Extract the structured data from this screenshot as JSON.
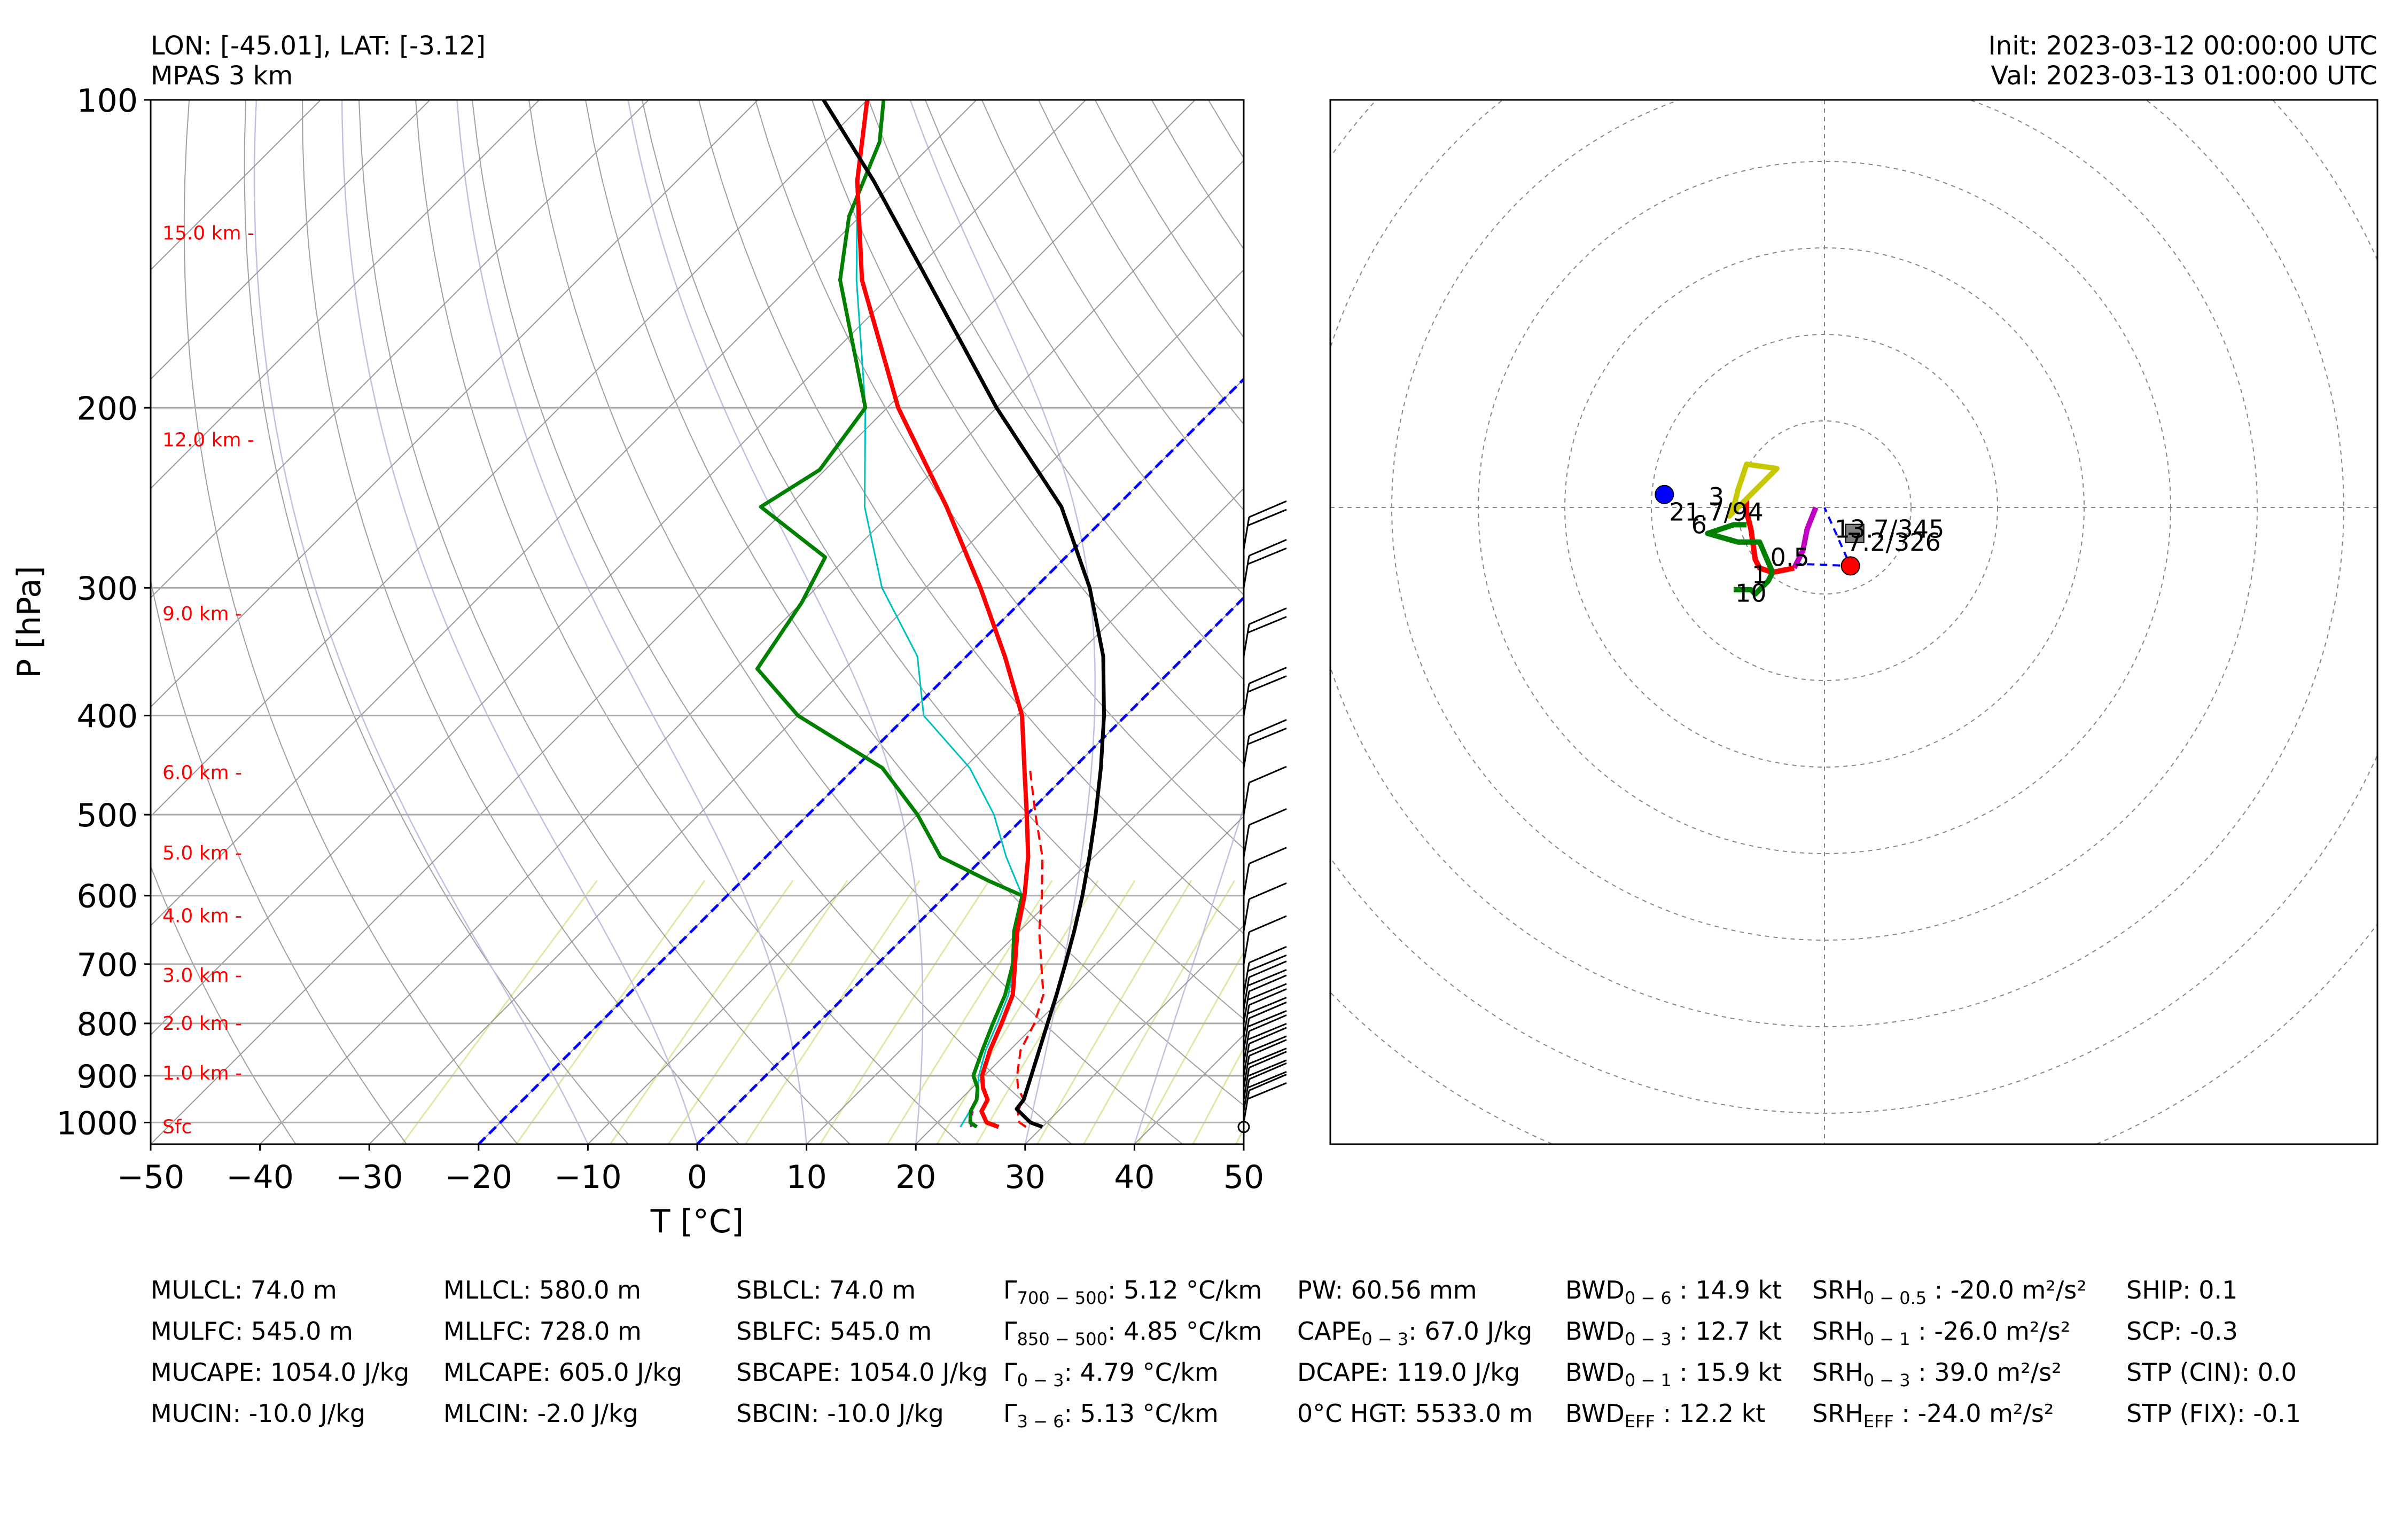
{
  "header": {
    "location": "LON: [-45.01], LAT: [-3.12]",
    "model": "MPAS 3 km",
    "init": "Init: 2023-03-12 00:00:00 UTC",
    "valid": "Val: 2023-03-13 01:00:00 UTC"
  },
  "colors": {
    "temperature": "#ff0000",
    "dewpoint": "#008000",
    "virtual_temperature": "#ff0000",
    "parcel_profile": "#000000",
    "wetbulb": "#00bfbf",
    "isotherm_zero": "#0000ff",
    "dry_adiabat": "#808080",
    "moist_adiabat": "#c0c0e0",
    "mixing_ratio": "#e0e8a8",
    "height_label": "#ff0000"
  },
  "chart_data": [
    {
      "type": "line",
      "subtype": "skew-T log-P",
      "xlabel": "T [°C]",
      "ylabel": "P [hPa]",
      "xlim": [
        -50,
        50
      ],
      "ylim": [
        1050,
        100
      ],
      "x_ticks": [
        "−50",
        "−40",
        "−30",
        "−20",
        "−10",
        "0",
        "10",
        "20",
        "30",
        "40",
        "50"
      ],
      "y_ticks": [
        "100",
        "200",
        "300",
        "400",
        "500",
        "600",
        "700",
        "800",
        "900",
        "1000"
      ],
      "y_tick_values": [
        100,
        200,
        300,
        400,
        500,
        600,
        700,
        800,
        900,
        1000
      ],
      "height_labels": [
        {
          "label": "15.0 km -",
          "p": 135
        },
        {
          "label": "12.0 km -",
          "p": 215
        },
        {
          "label": "9.0 km -",
          "p": 318
        },
        {
          "label": "6.0 km -",
          "p": 455
        },
        {
          "label": "5.0 km -",
          "p": 545
        },
        {
          "label": "4.0 km -",
          "p": 628
        },
        {
          "label": "3.0 km -",
          "p": 718
        },
        {
          "label": "2.0 km -",
          "p": 800
        },
        {
          "label": "1.0 km -",
          "p": 895
        },
        {
          "label": "Sfc",
          "p": 1010
        }
      ],
      "series": [
        {
          "key": "temperature",
          "points": [
            [
              1010,
              26
            ],
            [
              1000,
              24.5
            ],
            [
              975,
              23
            ],
            [
              950,
              22.5
            ],
            [
              925,
              21
            ],
            [
              900,
              19.8
            ],
            [
              850,
              18.2
            ],
            [
              800,
              16.8
            ],
            [
              750,
              15.2
            ],
            [
              700,
              12.6
            ],
            [
              650,
              9.8
            ],
            [
              600,
              7.2
            ],
            [
              550,
              4.0
            ],
            [
              500,
              0.0
            ],
            [
              450,
              -4.5
            ],
            [
              400,
              -9.5
            ],
            [
              350,
              -16.5
            ],
            [
              300,
              -25.0
            ],
            [
              250,
              -35.5
            ],
            [
              200,
              -49.0
            ],
            [
              150,
              -64.0
            ],
            [
              120,
              -73.5
            ],
            [
              100,
              -80.0
            ]
          ]
        },
        {
          "key": "virtual_temperature",
          "points": [
            [
              1010,
              28.5
            ],
            [
              1000,
              27.5
            ],
            [
              975,
              26.3
            ],
            [
              950,
              25.8
            ],
            [
              925,
              24.2
            ],
            [
              900,
              23.0
            ],
            [
              850,
              21.0
            ],
            [
              800,
              19.8
            ],
            [
              750,
              18.0
            ],
            [
              700,
              15.0
            ],
            [
              650,
              11.8
            ],
            [
              600,
              8.8
            ],
            [
              550,
              5.3
            ],
            [
              500,
              0.8
            ],
            [
              450,
              -4.0
            ]
          ]
        },
        {
          "key": "dewpoint",
          "points": [
            [
              1010,
              24
            ],
            [
              1000,
              23
            ],
            [
              975,
              22
            ],
            [
              950,
              21.5
            ],
            [
              925,
              20.5
            ],
            [
              900,
              19
            ],
            [
              850,
              17.5
            ],
            [
              800,
              16
            ],
            [
              750,
              14.5
            ],
            [
              700,
              12.4
            ],
            [
              650,
              9.5
            ],
            [
              600,
              7.0
            ],
            [
              580,
              2.5
            ],
            [
              550,
              -4.0
            ],
            [
              500,
              -10.0
            ],
            [
              450,
              -17.5
            ],
            [
              400,
              -30.0
            ],
            [
              360,
              -38.0
            ],
            [
              310,
              -40.0
            ],
            [
              280,
              -42.0
            ],
            [
              250,
              -52.5
            ],
            [
              230,
              -50.5
            ],
            [
              200,
              -52.0
            ],
            [
              150,
              -66.0
            ],
            [
              130,
              -71.0
            ],
            [
              110,
              -75.0
            ],
            [
              100,
              -78.5
            ]
          ]
        },
        {
          "key": "wetbulb",
          "points": [
            [
              1010,
              22.5
            ],
            [
              950,
              21.5
            ],
            [
              900,
              19.5
            ],
            [
              850,
              17.8
            ],
            [
              800,
              16.4
            ],
            [
              750,
              14.8
            ],
            [
              700,
              12.5
            ],
            [
              650,
              9.6
            ],
            [
              600,
              7.0
            ],
            [
              550,
              2.0
            ],
            [
              500,
              -3.0
            ],
            [
              450,
              -9.5
            ],
            [
              400,
              -18.5
            ],
            [
              350,
              -24.5
            ],
            [
              300,
              -34.0
            ],
            [
              250,
              -43.0
            ],
            [
              200,
              -52.0
            ],
            [
              150,
              -64.5
            ],
            [
              120,
              -73.5
            ],
            [
              100,
              -80.0
            ]
          ]
        },
        {
          "key": "dewpoint_low",
          "points": [
            [
              1010,
              23.5
            ],
            [
              1000,
              23
            ],
            [
              975,
              22.2
            ]
          ]
        },
        {
          "key": "parcel_profile",
          "points": [
            [
              1010,
              30
            ],
            [
              1000,
              28.5
            ],
            [
              970,
              26.0
            ],
            [
              950,
              25.8
            ],
            [
              900,
              24.3
            ],
            [
              850,
              22.7
            ],
            [
              800,
              21.0
            ],
            [
              750,
              19.2
            ],
            [
              700,
              17.2
            ],
            [
              650,
              15.0
            ],
            [
              600,
              12.5
            ],
            [
              550,
              9.6
            ],
            [
              500,
              6.3
            ],
            [
              450,
              2.5
            ],
            [
              400,
              -2.0
            ],
            [
              350,
              -7.5
            ],
            [
              300,
              -15.0
            ],
            [
              250,
              -25.0
            ],
            [
              200,
              -40.0
            ],
            [
              150,
              -58.0
            ],
            [
              120,
              -72.0
            ],
            [
              100,
              -84.0
            ]
          ]
        }
      ]
    },
    {
      "type": "line",
      "subtype": "hodograph",
      "ring_labels": [],
      "segments": [
        {
          "color": "#c000c0",
          "points": [
            [
              -2,
              0
            ],
            [
              -4,
              -5
            ],
            [
              -5,
              -10
            ],
            [
              -7,
              -14
            ]
          ]
        },
        {
          "color": "#ff0000",
          "points": [
            [
              -7,
              -14
            ],
            [
              -12,
              -15
            ],
            [
              -15,
              -14
            ],
            [
              -16,
              -12
            ],
            [
              -17,
              -5
            ],
            [
              -18,
              -1
            ],
            [
              -18,
              2
            ]
          ]
        },
        {
          "color": "#008000",
          "points": [
            [
              -12,
              -15
            ],
            [
              -13,
              -17
            ],
            [
              -16,
              -20
            ],
            [
              -17,
              -19
            ],
            [
              -21,
              -19
            ]
          ]
        },
        {
          "color": "#008000",
          "points": [
            [
              -18,
              -4
            ],
            [
              -21,
              -4
            ],
            [
              -27,
              -6
            ],
            [
              -20,
              -8
            ],
            [
              -15,
              -8
            ],
            [
              -12,
              -15
            ]
          ]
        },
        {
          "color": "#c8c800",
          "points": [
            [
              -18,
              2
            ],
            [
              -22,
              -2
            ],
            [
              -21,
              0
            ],
            [
              -20,
              4
            ],
            [
              -18,
              10
            ],
            [
              -11,
              9
            ],
            [
              -18,
              2
            ]
          ]
        }
      ],
      "markers": [
        {
          "label": "0.5",
          "x": -8,
          "y": -13.5
        },
        {
          "label": "1",
          "x": -15,
          "y": -17.5
        },
        {
          "label": "3",
          "x": -25,
          "y": 0.5
        },
        {
          "label": "6",
          "x": -29,
          "y": -6
        },
        {
          "label": "10",
          "x": -17,
          "y": -21.8
        }
      ],
      "annotations": [
        {
          "label": "21.7/94",
          "x": -25,
          "y": -3
        },
        {
          "label": "13.7/345",
          "x": 15,
          "y": -7
        },
        {
          "label": "7.2/326",
          "x": 16,
          "y": -10
        }
      ],
      "storm_motion_left": {
        "x": -37,
        "y": 3,
        "color": "#0000ff"
      },
      "storm_motion_right": {
        "x": 6,
        "y": -13.5,
        "color": "#ff0000"
      },
      "mean_wind": {
        "x": 7,
        "y": -6,
        "color": "#808080"
      }
    }
  ],
  "indices": {
    "col1": [
      "MULCL: 74.0 m",
      "MULFC: 545.0 m",
      "MUCAPE: 1054.0 J/kg",
      "MUCIN: -10.0 J/kg"
    ],
    "col2": [
      "MLLCL: 580.0 m",
      "MLLFC: 728.0 m",
      "MLCAPE: 605.0 J/kg",
      "MLCIN: -2.0 J/kg"
    ],
    "col3": [
      "SBLCL: 74.0 m",
      "SBLFC: 545.0 m",
      "SBCAPE: 1054.0 J/kg",
      "SBCIN: -10.0 J/kg"
    ],
    "col4": [
      {
        "pre": "Γ",
        "sub": "700 − 500",
        "post": ": 5.12 °C/km"
      },
      {
        "pre": "Γ",
        "sub": "850 − 500",
        "post": ": 4.85 °C/km"
      },
      {
        "pre": "Γ",
        "sub": "0 − 3",
        "post": ": 4.79 °C/km"
      },
      {
        "pre": "Γ",
        "sub": "3 − 6",
        "post": ": 5.13 °C/km"
      }
    ],
    "col5": [
      {
        "pre": "PW: 60.56 mm",
        "sub": "",
        "post": ""
      },
      {
        "pre": "CAPE",
        "sub": "0 − 3",
        "post": ": 67.0 J/kg"
      },
      {
        "pre": "DCAPE: 119.0 J/kg",
        "sub": "",
        "post": ""
      },
      {
        "pre": "0°C HGT: 5533.0 m",
        "sub": "",
        "post": ""
      }
    ],
    "col6": [
      {
        "pre": "BWD",
        "sub": "0 − 6",
        "post": " : 14.9 kt"
      },
      {
        "pre": "BWD",
        "sub": "0 − 3",
        "post": " : 12.7 kt"
      },
      {
        "pre": "BWD",
        "sub": "0 − 1",
        "post": " : 15.9 kt"
      },
      {
        "pre": "BWD",
        "sub": "EFF",
        "post": " : 12.2 kt"
      }
    ],
    "col7": [
      {
        "pre": "SRH",
        "sub": "0 − 0.5",
        "post": " : -20.0 m²/s²"
      },
      {
        "pre": "SRH",
        "sub": "0 − 1",
        "post": " : -26.0 m²/s²"
      },
      {
        "pre": "SRH",
        "sub": "0 − 3",
        "post": " : 39.0 m²/s²"
      },
      {
        "pre": "SRH",
        "sub": "EFF",
        "post": " : -24.0 m²/s²"
      }
    ],
    "col8": [
      "SHIP: 0.1",
      "SCP: -0.3",
      "STP (CIN): 0.0",
      "STP (FIX): -0.1"
    ]
  }
}
